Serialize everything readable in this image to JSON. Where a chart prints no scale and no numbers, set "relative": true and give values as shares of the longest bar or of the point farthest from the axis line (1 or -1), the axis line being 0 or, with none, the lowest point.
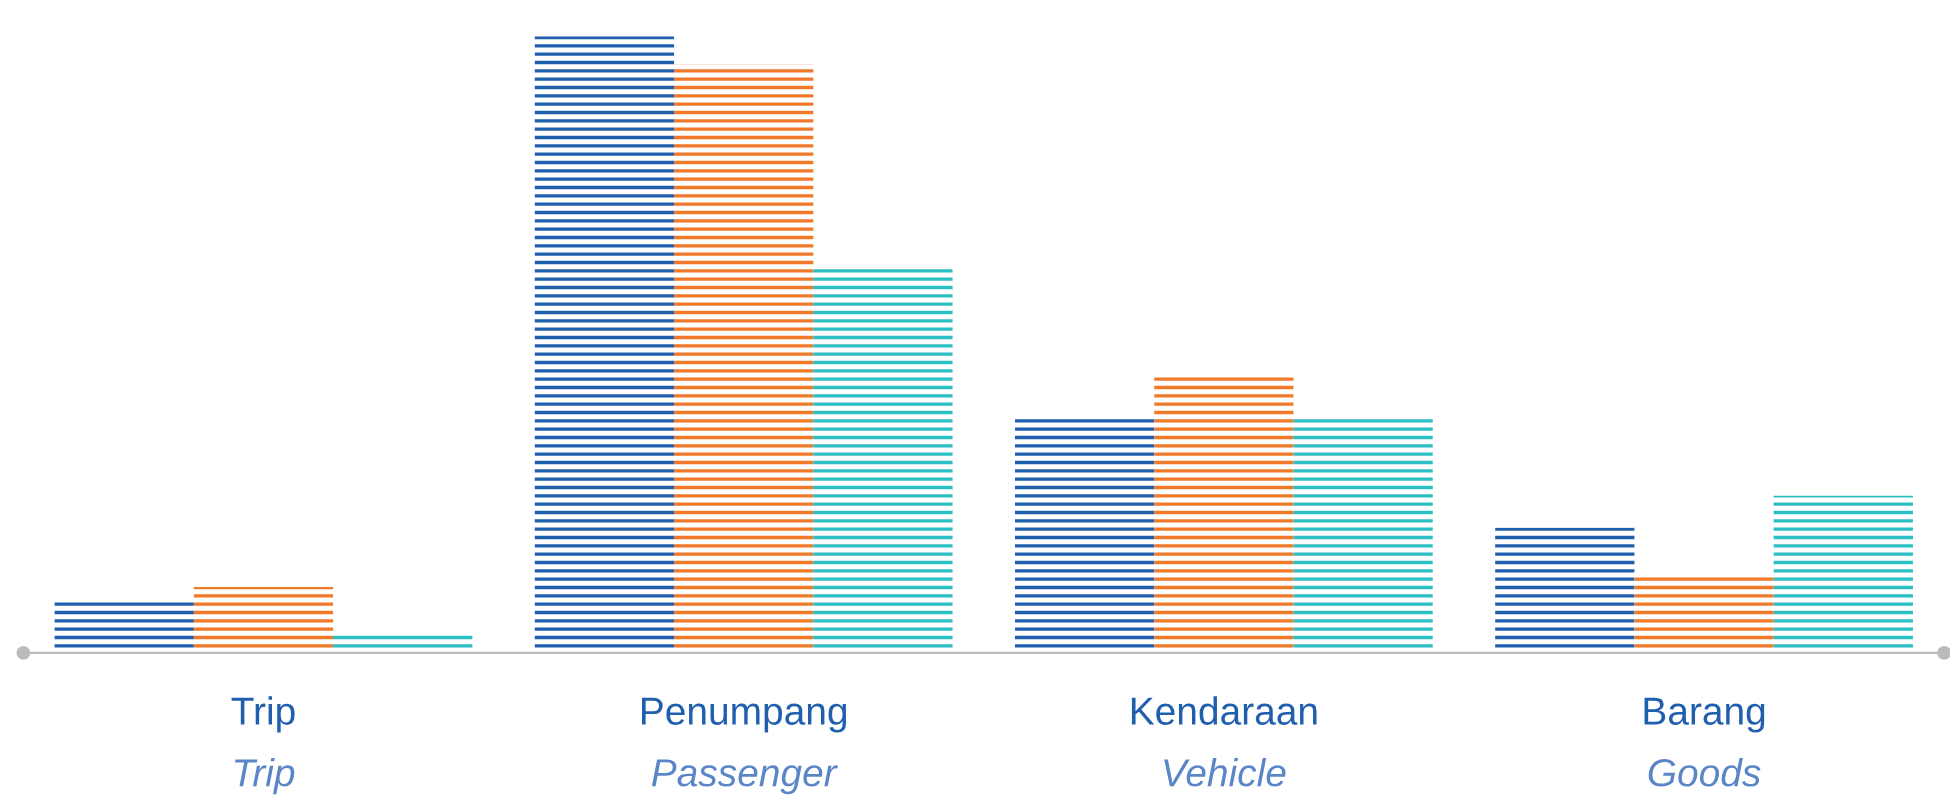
{
  "chart_data": {
    "type": "bar",
    "relative": true,
    "categories": [
      "Trip\nTrip",
      "Penumpang\nPassenger",
      "Kendaraan\nVehicle",
      "Barang\nGoods"
    ],
    "series": [
      {
        "color": "#1f5fae",
        "values": [
          0.083,
          1.0,
          0.383,
          0.203
        ]
      },
      {
        "color": "#f07a2a",
        "values": [
          0.107,
          0.955,
          0.452,
          0.128
        ]
      },
      {
        "color": "#2bbfc4",
        "values": [
          0.031,
          0.624,
          0.383,
          0.255
        ]
      }
    ]
  }
}
